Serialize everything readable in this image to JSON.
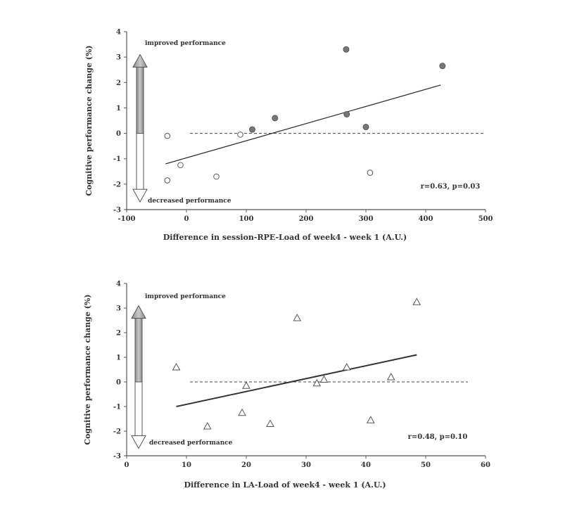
{
  "chart_data": [
    {
      "type": "scatter",
      "xlabel": "Difference in session-RPE-Load of week4 - week 1 (A.U.)",
      "ylabel": "Cognitive performance change (%)",
      "xlim": [
        -100,
        500
      ],
      "ylim": [
        -3,
        4
      ],
      "xticks": [
        "-100",
        "0",
        "100",
        "200",
        "300",
        "400",
        "500"
      ],
      "yticks": [
        "-3",
        "-2",
        "-1",
        "0",
        "1",
        "2",
        "3",
        "4"
      ],
      "annotation_top": "improved performance",
      "annotation_bottom": "decreased performance",
      "stat": "r=0.63, p=0.03",
      "reference_line_y": 0,
      "trend": {
        "x": [
          -35,
          425
        ],
        "y": [
          -1.2,
          1.9
        ]
      },
      "series": [
        {
          "marker": "open-circle",
          "points": [
            {
              "x": -32,
              "y": -0.1
            },
            {
              "x": -32,
              "y": -1.85
            },
            {
              "x": -10,
              "y": -1.25
            },
            {
              "x": 50,
              "y": -1.7
            },
            {
              "x": 90,
              "y": -0.05
            },
            {
              "x": 307,
              "y": -1.55
            }
          ]
        },
        {
          "marker": "filled-circle",
          "points": [
            {
              "x": 110,
              "y": 0.15
            },
            {
              "x": 148,
              "y": 0.6
            },
            {
              "x": 267,
              "y": 3.3
            },
            {
              "x": 268,
              "y": 0.75
            },
            {
              "x": 300,
              "y": 0.25
            },
            {
              "x": 428,
              "y": 2.65
            }
          ]
        }
      ]
    },
    {
      "type": "scatter",
      "xlabel": "Difference in LA-Load of week4 - week 1 (A.U.)",
      "ylabel": "Cognitive performance change (%)",
      "xlim": [
        0,
        60
      ],
      "ylim": [
        -3,
        4
      ],
      "xticks": [
        "0",
        "10",
        "20",
        "30",
        "40",
        "50",
        "60"
      ],
      "yticks": [
        "-3",
        "-2",
        "-1",
        "0",
        "1",
        "2",
        "3",
        "4"
      ],
      "annotation_top": "improved performance",
      "annotation_bottom": "decreased performance",
      "stat": "r=0.48, p=0.10",
      "reference_line_y": 0,
      "trend": {
        "x": [
          8.3,
          48.5
        ],
        "y": [
          -1.0,
          1.1
        ]
      },
      "series": [
        {
          "marker": "open-triangle",
          "points": [
            {
              "x": 8.3,
              "y": 0.6
            },
            {
              "x": 13.5,
              "y": -1.8
            },
            {
              "x": 19.3,
              "y": -1.25
            },
            {
              "x": 20,
              "y": -0.15
            },
            {
              "x": 24,
              "y": -1.7
            },
            {
              "x": 28.5,
              "y": 2.6
            },
            {
              "x": 31.8,
              "y": -0.05
            },
            {
              "x": 33,
              "y": 0.1
            },
            {
              "x": 36.8,
              "y": 0.6
            },
            {
              "x": 40.8,
              "y": -1.55
            },
            {
              "x": 44.2,
              "y": 0.2
            },
            {
              "x": 48.5,
              "y": 3.25
            }
          ]
        }
      ]
    }
  ]
}
